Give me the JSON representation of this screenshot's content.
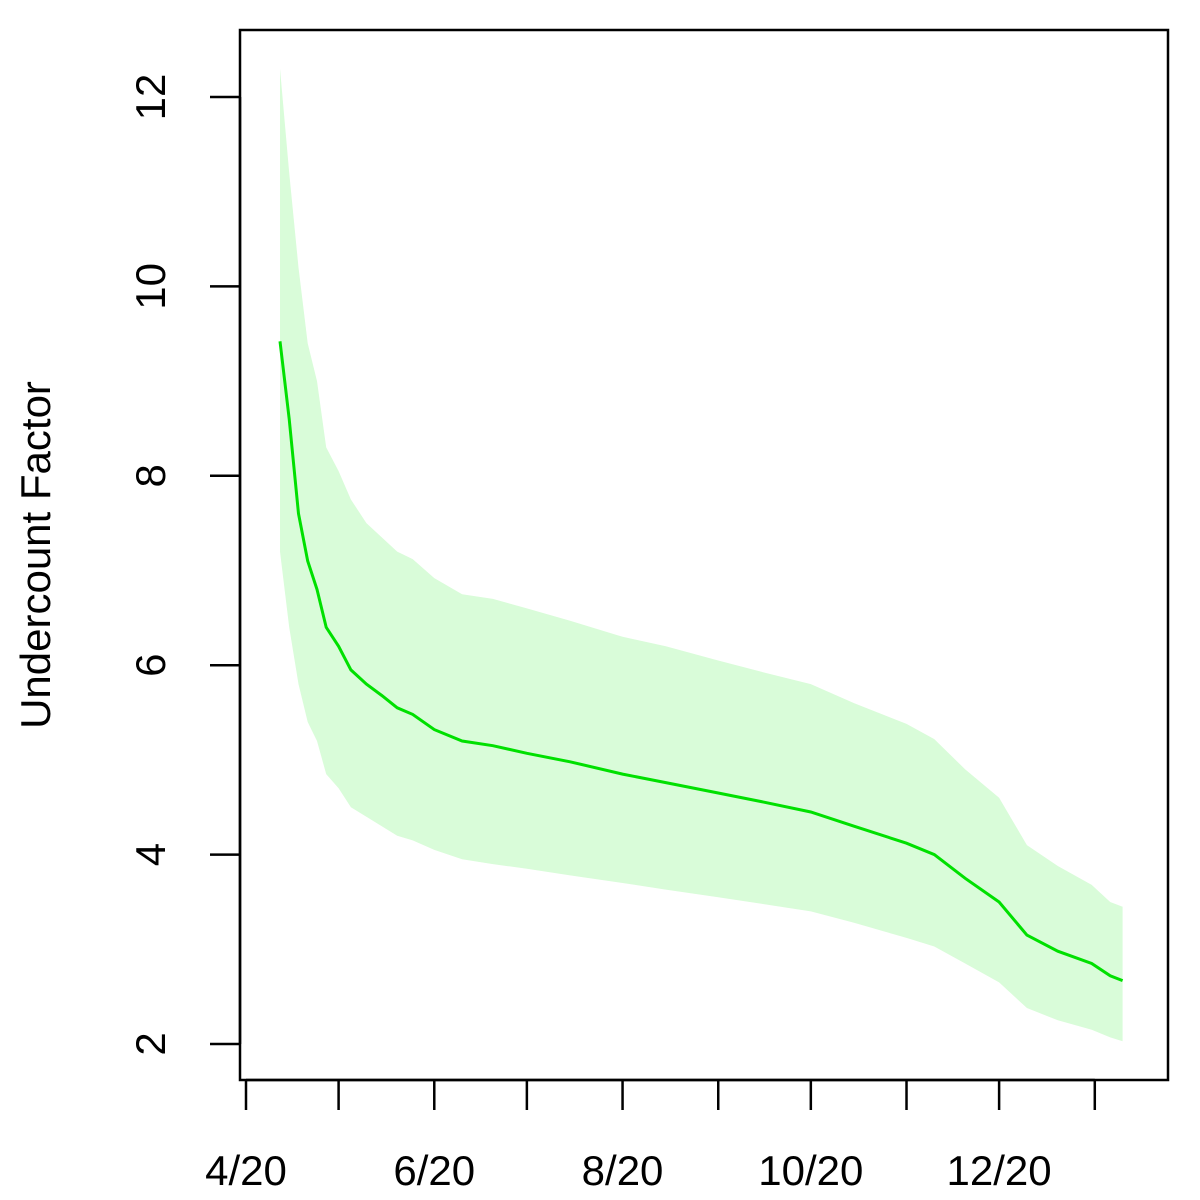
{
  "chart_data": {
    "type": "line",
    "title": "",
    "xlabel": "",
    "ylabel": "Undercount Factor",
    "xlim": [
      "2020-04-01",
      "2021-01-15"
    ],
    "ylim": [
      2,
      12.5
    ],
    "x_ticks": [
      {
        "date": "2020-04-01",
        "label": "4/20"
      },
      {
        "date": "2020-05-01",
        "label": ""
      },
      {
        "date": "2020-06-01",
        "label": "6/20"
      },
      {
        "date": "2020-07-01",
        "label": ""
      },
      {
        "date": "2020-08-01",
        "label": "8/20"
      },
      {
        "date": "2020-09-01",
        "label": ""
      },
      {
        "date": "2020-10-01",
        "label": "10/20"
      },
      {
        "date": "2020-11-01",
        "label": ""
      },
      {
        "date": "2020-12-01",
        "label": "12/20"
      },
      {
        "date": "2021-01-01",
        "label": ""
      }
    ],
    "y_ticks": [
      2,
      4,
      6,
      8,
      10,
      12
    ],
    "grid": false,
    "colors": {
      "line": "#00e000",
      "band": "#d9fcd9"
    },
    "series": [
      {
        "values": [
          {
            "x": "2020-04-12",
            "y": 9.42,
            "lower": 7.2,
            "upper": 12.3
          },
          {
            "x": "2020-04-15",
            "y": 8.6,
            "lower": 6.4,
            "upper": 11.2
          },
          {
            "x": "2020-04-18",
            "y": 7.6,
            "lower": 5.8,
            "upper": 10.2
          },
          {
            "x": "2020-04-21",
            "y": 7.1,
            "lower": 5.4,
            "upper": 9.4
          },
          {
            "x": "2020-04-24",
            "y": 6.8,
            "lower": 5.2,
            "upper": 9.0
          },
          {
            "x": "2020-04-27",
            "y": 6.4,
            "lower": 4.85,
            "upper": 8.3
          },
          {
            "x": "2020-05-01",
            "y": 6.2,
            "lower": 4.7,
            "upper": 8.05
          },
          {
            "x": "2020-05-05",
            "y": 5.95,
            "lower": 4.5,
            "upper": 7.75
          },
          {
            "x": "2020-05-10",
            "y": 5.8,
            "lower": 4.4,
            "upper": 7.5
          },
          {
            "x": "2020-05-15",
            "y": 5.68,
            "lower": 4.3,
            "upper": 7.35
          },
          {
            "x": "2020-05-20",
            "y": 5.55,
            "lower": 4.2,
            "upper": 7.2
          },
          {
            "x": "2020-05-25",
            "y": 5.48,
            "lower": 4.15,
            "upper": 7.12
          },
          {
            "x": "2020-06-01",
            "y": 5.32,
            "lower": 4.05,
            "upper": 6.92
          },
          {
            "x": "2020-06-10",
            "y": 5.2,
            "lower": 3.95,
            "upper": 6.75
          },
          {
            "x": "2020-06-20",
            "y": 5.15,
            "lower": 3.9,
            "upper": 6.7
          },
          {
            "x": "2020-07-01",
            "y": 5.07,
            "lower": 3.85,
            "upper": 6.6
          },
          {
            "x": "2020-07-15",
            "y": 4.98,
            "lower": 3.78,
            "upper": 6.47
          },
          {
            "x": "2020-08-01",
            "y": 4.85,
            "lower": 3.7,
            "upper": 6.3
          },
          {
            "x": "2020-08-15",
            "y": 4.76,
            "lower": 3.63,
            "upper": 6.2
          },
          {
            "x": "2020-09-01",
            "y": 4.65,
            "lower": 3.55,
            "upper": 6.05
          },
          {
            "x": "2020-09-15",
            "y": 4.56,
            "lower": 3.48,
            "upper": 5.93
          },
          {
            "x": "2020-10-01",
            "y": 4.45,
            "lower": 3.4,
            "upper": 5.8
          },
          {
            "x": "2020-10-15",
            "y": 4.3,
            "lower": 3.28,
            "upper": 5.6
          },
          {
            "x": "2020-11-01",
            "y": 4.12,
            "lower": 3.12,
            "upper": 5.38
          },
          {
            "x": "2020-11-10",
            "y": 4.0,
            "lower": 3.03,
            "upper": 5.22
          },
          {
            "x": "2020-11-20",
            "y": 3.75,
            "lower": 2.85,
            "upper": 4.9
          },
          {
            "x": "2020-12-01",
            "y": 3.5,
            "lower": 2.65,
            "upper": 4.6
          },
          {
            "x": "2020-12-10",
            "y": 3.15,
            "lower": 2.38,
            "upper": 4.1
          },
          {
            "x": "2020-12-20",
            "y": 2.98,
            "lower": 2.25,
            "upper": 3.88
          },
          {
            "x": "2020-12-31",
            "y": 2.85,
            "lower": 2.15,
            "upper": 3.68
          },
          {
            "x": "2021-01-06",
            "y": 2.72,
            "lower": 2.07,
            "upper": 3.5
          },
          {
            "x": "2021-01-10",
            "y": 2.67,
            "lower": 2.03,
            "upper": 3.45
          }
        ]
      }
    ]
  }
}
